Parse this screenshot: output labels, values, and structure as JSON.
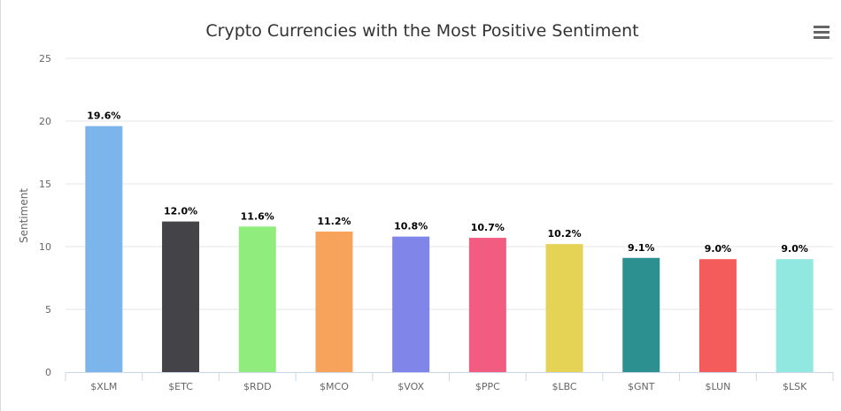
{
  "chart_data": {
    "type": "bar",
    "title": "Crypto Currencies with the Most Positive Sentiment",
    "xlabel": "",
    "ylabel": "Sentiment",
    "ylim": [
      0,
      25
    ],
    "yticks": [
      "0",
      "5",
      "10",
      "15",
      "20",
      "25"
    ],
    "categories": [
      "$XLM",
      "$ETC",
      "$RDD",
      "$MCO",
      "$VOX",
      "$PPC",
      "$LBC",
      "$GNT",
      "$LUN",
      "$LSK"
    ],
    "values": [
      19.6,
      12.0,
      11.6,
      11.2,
      10.8,
      10.7,
      10.2,
      9.1,
      9.0,
      9.0
    ],
    "value_labels": [
      "19.6%",
      "12.0%",
      "11.6%",
      "11.2%",
      "10.8%",
      "10.7%",
      "10.2%",
      "9.1%",
      "9.0%",
      "9.0%"
    ],
    "colors": [
      "#7cb5ec",
      "#434348",
      "#90ed7d",
      "#f7a35c",
      "#8085e9",
      "#f15c80",
      "#e4d354",
      "#2b908f",
      "#f45b5b",
      "#91e8e1"
    ],
    "grid": true,
    "legend": "none"
  },
  "menu": {
    "icon": "hamburger-menu-icon"
  }
}
